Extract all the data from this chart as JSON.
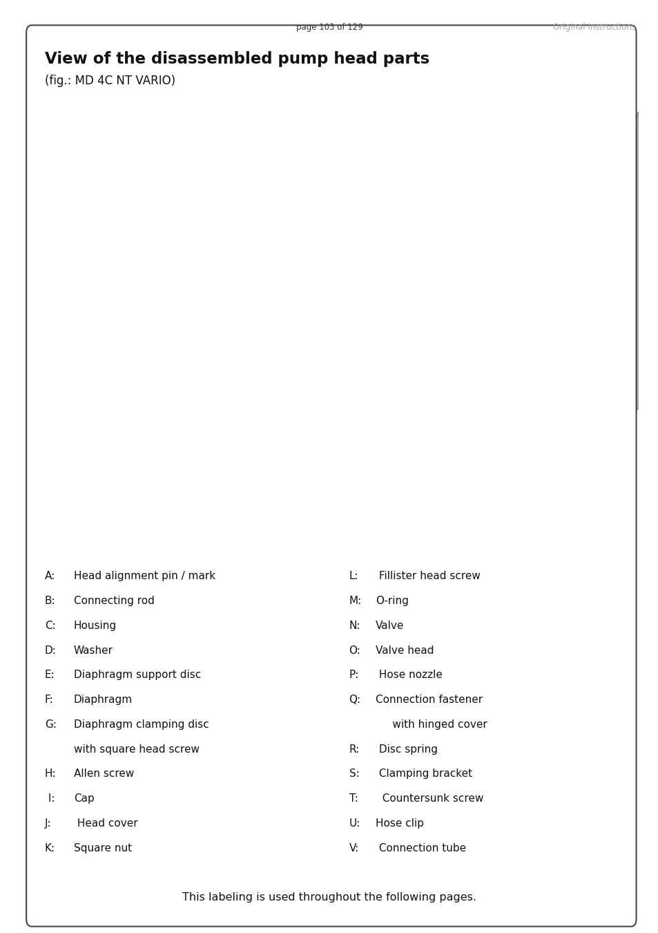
{
  "page_header_left": "page 103 of 129",
  "page_header_right": "Original instructions",
  "title": "View of the disassembled pump head parts",
  "subtitle": "(fig.: MD 4C NT VARIO)",
  "legend_left": [
    [
      "A:",
      "Head alignment pin / mark"
    ],
    [
      "B:",
      "Connecting rod"
    ],
    [
      "C:",
      "Housing"
    ],
    [
      "D:",
      "Washer"
    ],
    [
      "E:",
      "Diaphragm support disc"
    ],
    [
      "F:",
      "Diaphragm"
    ],
    [
      "G:",
      "Diaphragm clamping disc"
    ],
    [
      "",
      "with square head screw"
    ],
    [
      "H:",
      "Allen screw"
    ],
    [
      " I:",
      "Cap"
    ],
    [
      "J:",
      " Head cover"
    ],
    [
      "K:",
      "Square nut"
    ]
  ],
  "legend_right": [
    [
      "L:",
      " Fillister head screw"
    ],
    [
      "M:",
      "O-ring"
    ],
    [
      "N:",
      "Valve"
    ],
    [
      "O:",
      "Valve head"
    ],
    [
      "P:",
      " Hose nozzle"
    ],
    [
      "Q:",
      "Connection fastener"
    ],
    [
      "",
      "     with hinged cover"
    ],
    [
      "R:",
      " Disc spring"
    ],
    [
      "S:",
      " Clamping bracket"
    ],
    [
      "T:",
      "  Countersunk screw"
    ],
    [
      "U:",
      "Hose clip"
    ],
    [
      "V:",
      " Connection tube"
    ]
  ],
  "footer_text": "This labeling is used throughout the following pages.",
  "bg_color": "#ffffff",
  "border_color": "#444444",
  "header_color": "#333333",
  "header_right_color": "#aaaaaa",
  "title_color": "#111111",
  "text_color": "#111111"
}
